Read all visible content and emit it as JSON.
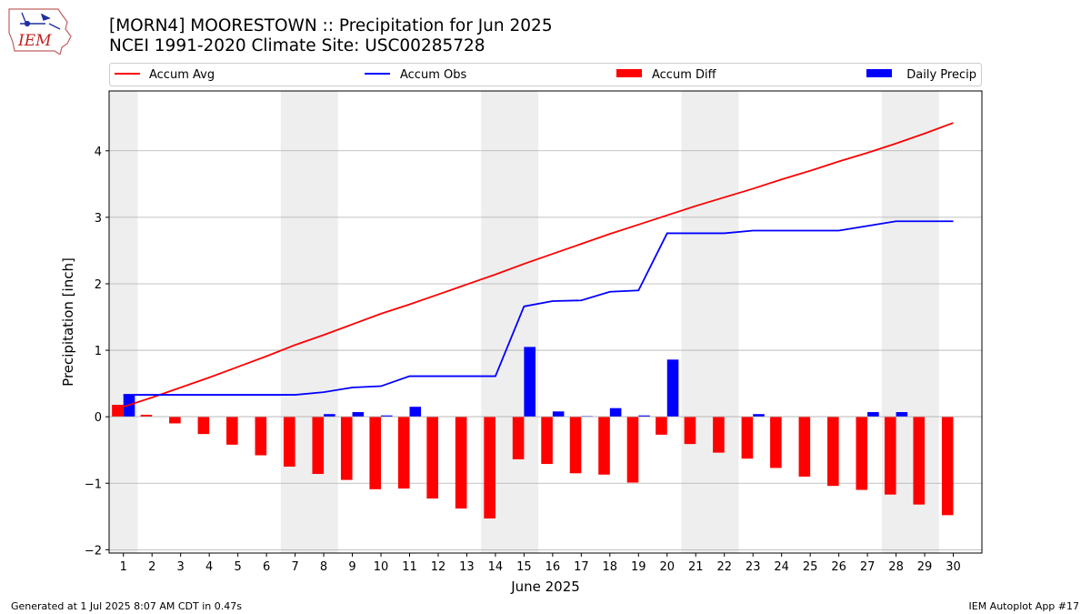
{
  "header": {
    "logo_text": "IEM",
    "title_line1": "[MORN4] MOORESTOWN :: Precipitation for Jun 2025",
    "title_line2": "NCEI 1991-2020 Climate Site: USC00285728"
  },
  "footer": {
    "left": "Generated at 1 Jul 2025 8:07 AM CDT in 0.47s",
    "right": "IEM Autoplot App #17"
  },
  "colors": {
    "accum_avg": "#ff0000",
    "accum_obs": "#0000ff",
    "accum_diff": "#ff0000",
    "daily_precip": "#0000ff",
    "weekend_shade": "#eeeeee",
    "grid": "#b0b0b0"
  },
  "chart_data": {
    "type": "bar",
    "xlabel": "June 2025",
    "ylabel": "Precipitation [inch]",
    "ylim": [
      -2.05,
      4.9
    ],
    "xlim": [
      0.5,
      31
    ],
    "yticks": [
      -2,
      -1,
      0,
      1,
      2,
      3,
      4
    ],
    "ytick_labels": [
      "−2",
      "−1",
      "0",
      "1",
      "2",
      "3",
      "4"
    ],
    "grid": "horizontal",
    "legend": {
      "placement": "top",
      "entries": [
        {
          "label": "Accum Avg",
          "kind": "line",
          "color": "#ff0000"
        },
        {
          "label": "Accum Obs",
          "kind": "line",
          "color": "#0000ff"
        },
        {
          "label": "Accum Diff",
          "kind": "bar",
          "color": "#ff0000"
        },
        {
          "label": "Daily Precip",
          "kind": "bar",
          "color": "#0000ff"
        }
      ]
    },
    "shaded_weekends": [
      [
        0.5,
        1.5
      ],
      [
        6.5,
        8.5
      ],
      [
        13.5,
        15.5
      ],
      [
        20.5,
        22.5
      ],
      [
        27.5,
        29.5
      ]
    ],
    "days": [
      1,
      2,
      3,
      4,
      5,
      6,
      7,
      8,
      9,
      10,
      11,
      12,
      13,
      14,
      15,
      16,
      17,
      18,
      19,
      20,
      21,
      22,
      23,
      24,
      25,
      26,
      27,
      28,
      29,
      30
    ],
    "series": [
      {
        "name": "Accum Avg",
        "type": "line",
        "values": [
          0.15,
          0.29,
          0.44,
          0.59,
          0.75,
          0.91,
          1.08,
          1.23,
          1.39,
          1.55,
          1.69,
          1.84,
          1.99,
          2.14,
          2.3,
          2.45,
          2.6,
          2.75,
          2.89,
          3.03,
          3.17,
          3.3,
          3.43,
          3.57,
          3.7,
          3.84,
          3.97,
          4.11,
          4.26,
          4.42
        ]
      },
      {
        "name": "Accum Obs",
        "type": "line",
        "values": [
          0.33,
          0.33,
          0.33,
          0.33,
          0.33,
          0.33,
          0.33,
          0.37,
          0.44,
          0.46,
          0.61,
          0.61,
          0.61,
          0.61,
          1.66,
          1.74,
          1.75,
          1.88,
          1.9,
          2.76,
          2.76,
          2.76,
          2.8,
          2.8,
          2.8,
          2.8,
          2.87,
          2.94,
          2.94,
          2.94
        ]
      },
      {
        "name": "Accum Diff",
        "type": "bar",
        "values": [
          0.18,
          0.03,
          -0.1,
          -0.26,
          -0.42,
          -0.58,
          -0.75,
          -0.86,
          -0.95,
          -1.09,
          -1.08,
          -1.23,
          -1.38,
          -1.53,
          -0.64,
          -0.71,
          -0.85,
          -0.87,
          -0.99,
          -0.27,
          -0.41,
          -0.54,
          -0.63,
          -0.77,
          -0.9,
          -1.04,
          -1.1,
          -1.17,
          -1.32,
          -1.48
        ]
      },
      {
        "name": "Daily Precip",
        "type": "bar",
        "values": [
          0.33,
          0,
          0,
          0,
          0,
          0,
          0,
          0.04,
          0.07,
          0.02,
          0.15,
          0,
          0,
          0,
          1.05,
          0.08,
          0.01,
          0.13,
          0.02,
          0.86,
          0,
          0,
          0.04,
          0,
          0,
          0,
          0.07,
          0.07,
          0,
          0
        ]
      }
    ]
  }
}
